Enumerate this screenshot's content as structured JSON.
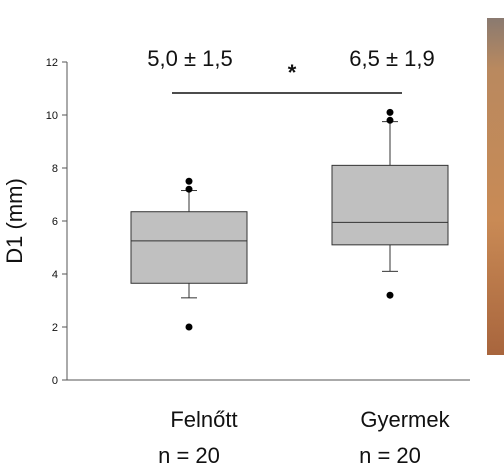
{
  "chart_data": {
    "type": "box",
    "y_label": "D1 (mm)",
    "categories": [
      "Felnőtt",
      "Gyermek"
    ],
    "n_labels": [
      "n = 20",
      "n = 20"
    ],
    "annotations": [
      "5,0 ± 1,5",
      "6,5 ± 1,9"
    ],
    "significance": "*",
    "boxes": [
      {
        "whisker_low": 3.1,
        "q1": 3.65,
        "median": 5.25,
        "q3": 6.35,
        "whisker_high": 7.15,
        "outliers": [
          2.0,
          7.2,
          7.5
        ]
      },
      {
        "whisker_low": 4.1,
        "q1": 5.1,
        "median": 5.95,
        "q3": 8.1,
        "whisker_high": 9.75,
        "outliers": [
          3.2,
          9.8,
          10.1
        ]
      }
    ],
    "color": "#c0c0c0",
    "ylim": [
      0,
      12
    ],
    "yticks": [
      0,
      2,
      4,
      6,
      8,
      10,
      12
    ]
  }
}
